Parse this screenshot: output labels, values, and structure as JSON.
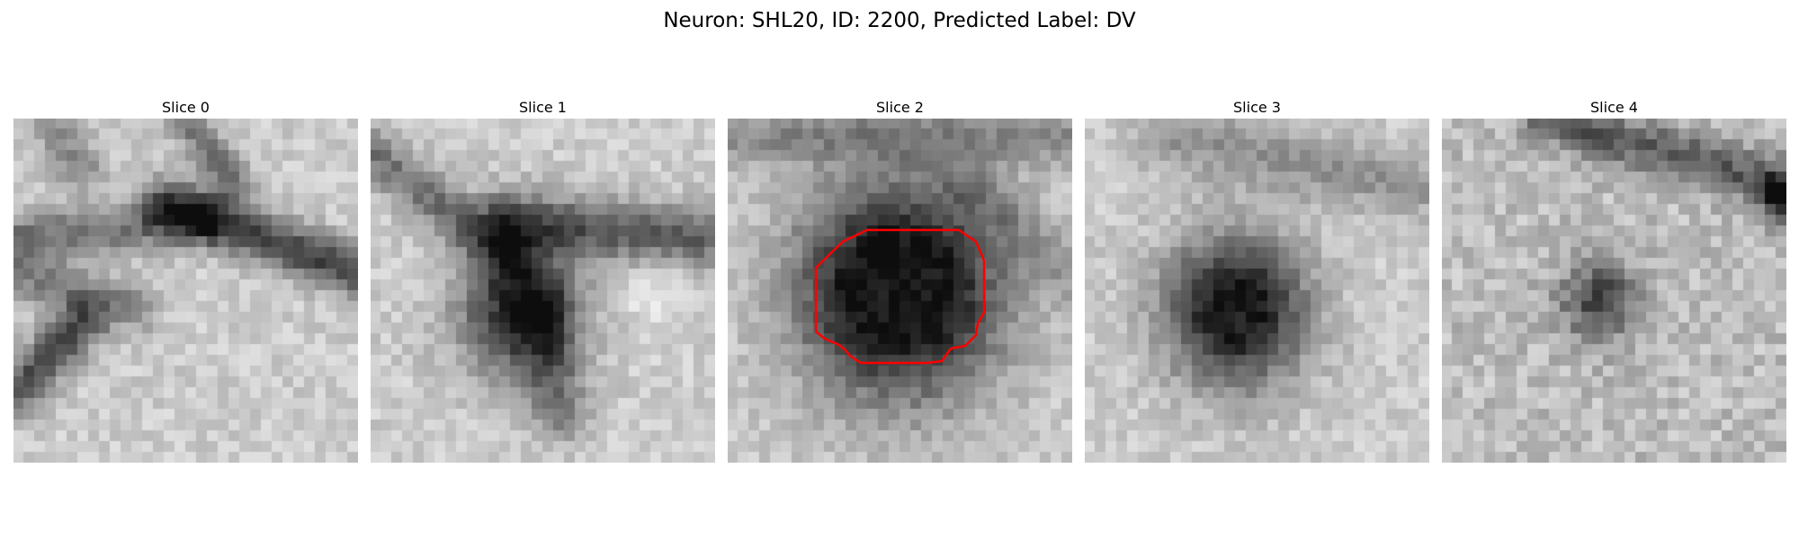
{
  "figure": {
    "title": "Neuron: SHL20, ID: 2200, Predicted Label: DV"
  },
  "slices": [
    {
      "title": "Slice 0",
      "pattern": "oblique-dark-bands",
      "has_contour": false
    },
    {
      "title": "Slice 1",
      "pattern": "dark-blob-with-bands",
      "has_contour": false
    },
    {
      "title": "Slice 2",
      "pattern": "dark-round-blob",
      "has_contour": true
    },
    {
      "title": "Slice 3",
      "pattern": "dark-round-blob-faint",
      "has_contour": false
    },
    {
      "title": "Slice 4",
      "pattern": "small-faint-blob",
      "has_contour": false
    }
  ],
  "colors": {
    "contour": "#ff0000",
    "colormap": "gray"
  }
}
